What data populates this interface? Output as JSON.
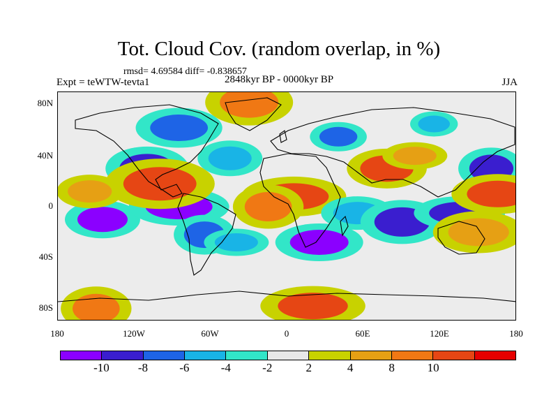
{
  "header": {
    "title": "Tot. Cloud Cov. (random overlap, in %)",
    "stats": "rmsd= 4.69584 diff= -0.838657",
    "experiment": "Expt = teWTW-tevta1",
    "period": "2848kyr BP - 0000kyr BP",
    "season": "JJA"
  },
  "axes": {
    "y_ticks": [
      "80N",
      "40N",
      "0",
      "40S",
      "80S"
    ],
    "x_ticks": [
      "180",
      "120W",
      "60W",
      "0",
      "60E",
      "120E",
      "180"
    ]
  },
  "colorbar": {
    "colors": [
      "#8b00ff",
      "#3a1ecf",
      "#1e64e6",
      "#19b4e6",
      "#32e6c8",
      "#e8e8e8",
      "#c8d200",
      "#e6a014",
      "#f07814",
      "#e64614",
      "#e60000"
    ],
    "labels": [
      "-10",
      "-8",
      "-6",
      "-4",
      "-2",
      "2",
      "4",
      "8",
      "10"
    ]
  },
  "chart_data": {
    "type": "heatmap",
    "title": "Tot. Cloud Cov. (random overlap, in %)",
    "xlabel": "",
    "ylabel": "",
    "xlim": [
      -180,
      180
    ],
    "ylim": [
      -90,
      90
    ],
    "levels": [
      -10,
      -8,
      -6,
      -4,
      -2,
      2,
      4,
      8,
      10
    ],
    "rmsd": 4.69584,
    "diff": -0.838657,
    "regions": [
      {
        "lon": -145,
        "lat": -10,
        "value": -10
      },
      {
        "lon": -110,
        "lat": 30,
        "value": -9
      },
      {
        "lon": -85,
        "lat": 0,
        "value": -10
      },
      {
        "lon": -65,
        "lat": -22,
        "value": -7
      },
      {
        "lon": -40,
        "lat": -28,
        "value": -5
      },
      {
        "lon": -100,
        "lat": 18,
        "value": 12
      },
      {
        "lon": -155,
        "lat": 12,
        "value": 8
      },
      {
        "lon": -45,
        "lat": 38,
        "value": -5
      },
      {
        "lon": 5,
        "lat": 8,
        "value": 11
      },
      {
        "lon": -15,
        "lat": 0,
        "value": 9
      },
      {
        "lon": 25,
        "lat": -28,
        "value": -10
      },
      {
        "lon": 55,
        "lat": -5,
        "value": -4
      },
      {
        "lon": 78,
        "lat": 30,
        "value": 11
      },
      {
        "lon": 90,
        "lat": -12,
        "value": -9
      },
      {
        "lon": 135,
        "lat": -5,
        "value": -8
      },
      {
        "lon": 160,
        "lat": 30,
        "value": -8
      },
      {
        "lon": 165,
        "lat": 10,
        "value": 11
      },
      {
        "lon": 150,
        "lat": -20,
        "value": 8
      },
      {
        "lon": 40,
        "lat": 55,
        "value": -6
      },
      {
        "lon": -30,
        "lat": 82,
        "value": 10
      },
      {
        "lon": 20,
        "lat": -78,
        "value": 11
      },
      {
        "lon": -150,
        "lat": -80,
        "value": 9
      },
      {
        "lon": 100,
        "lat": 40,
        "value": 5
      },
      {
        "lon": -85,
        "lat": 62,
        "value": -7
      },
      {
        "lon": 115,
        "lat": 65,
        "value": -4
      }
    ]
  }
}
